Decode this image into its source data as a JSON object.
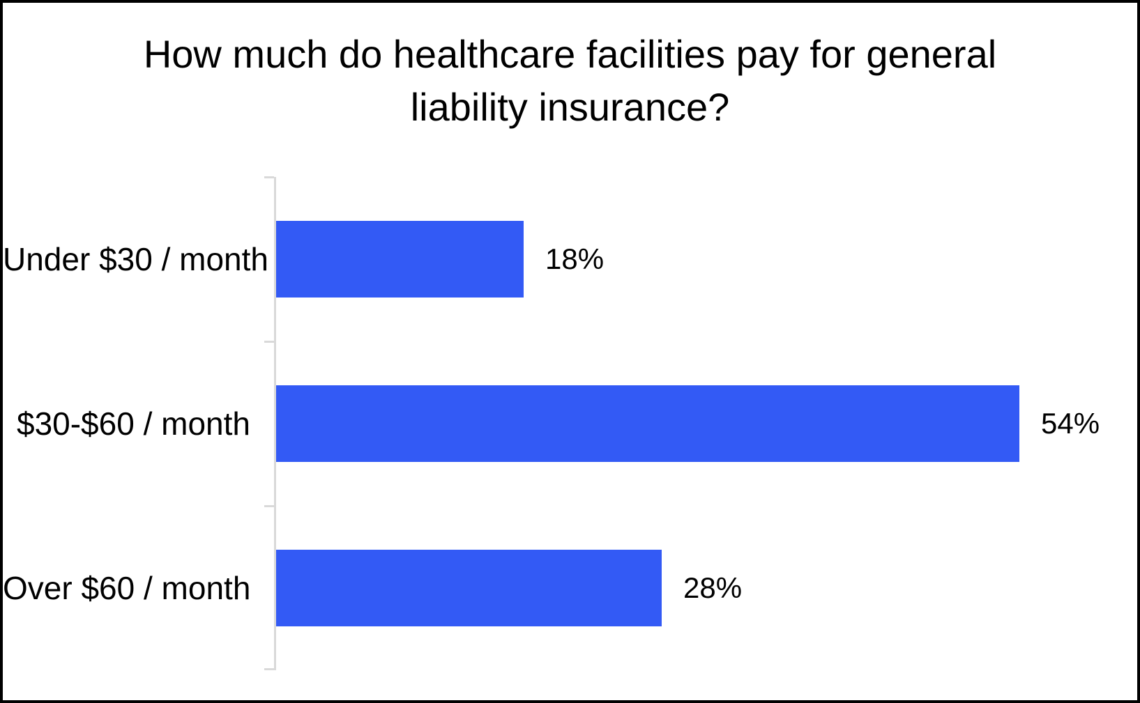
{
  "chart_data": {
    "type": "bar",
    "orientation": "horizontal",
    "title": "How much do healthcare facilities pay for general liability insurance?",
    "categories": [
      "Under $30 / month",
      "$30-$60 / month",
      "Over $60 / month"
    ],
    "values": [
      18,
      54,
      28
    ],
    "value_labels": [
      "18%",
      "54%",
      "28%"
    ],
    "xlabel": "",
    "ylabel": "",
    "xlim": [
      0,
      63
    ],
    "grid": false,
    "legend": "none",
    "data_labels": "outside-end",
    "colors": {
      "bar": "#335af5",
      "axis_line": "#d9d9d9",
      "text": "#000000",
      "background": "#ffffff",
      "frame_border": "#000000"
    }
  }
}
